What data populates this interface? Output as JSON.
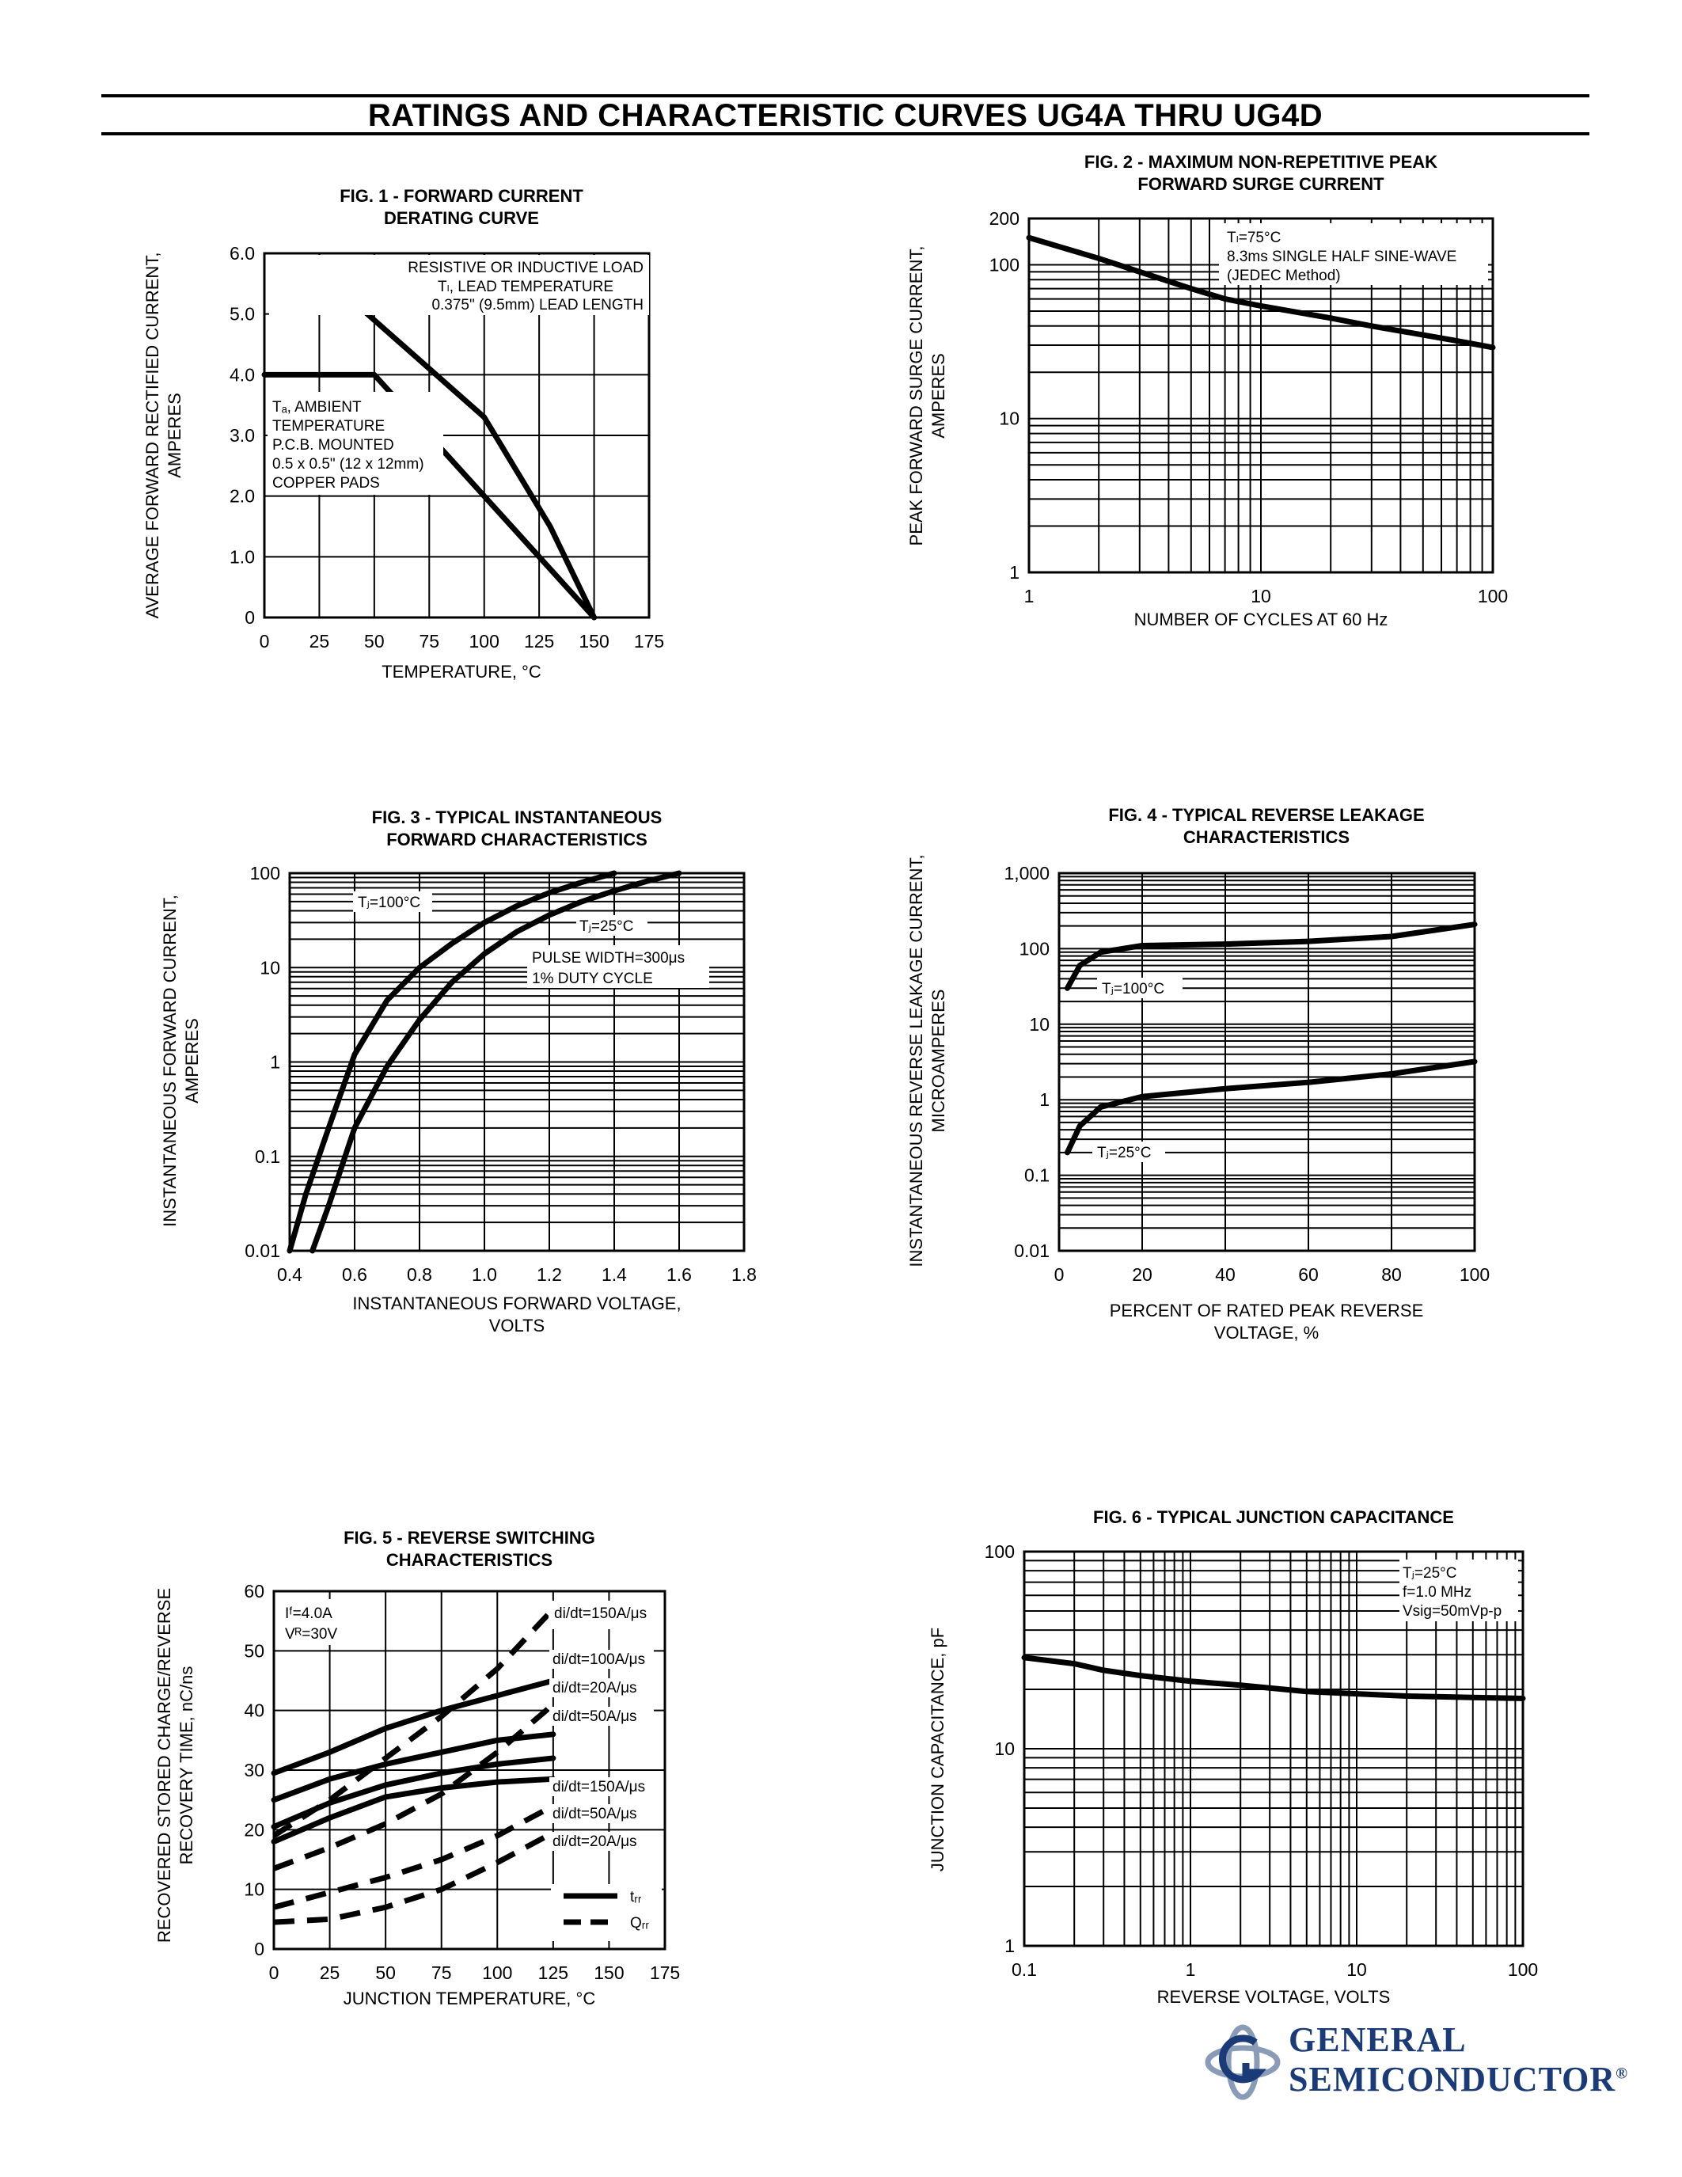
{
  "header": {
    "title": "RATINGS AND CHARACTERISTIC CURVES UG4A THRU UG4D"
  },
  "logo": {
    "line1": "GENERAL",
    "line2": "SEMICONDUCTOR",
    "reg": "®",
    "color": "#1a3a78"
  },
  "chart_data": [
    {
      "id": "fig1",
      "type": "line",
      "title": [
        "FIG. 1 - FORWARD CURRENT",
        "DERATING CURVE"
      ],
      "xlabel": [
        "TEMPERATURE, °C"
      ],
      "ylabel": [
        "AVERAGE FORWARD RECTIFIED CURRENT,",
        "AMPERES"
      ],
      "xlim": [
        0,
        175
      ],
      "ylim": [
        0,
        6.0
      ],
      "xticks": [
        0,
        25,
        50,
        75,
        100,
        125,
        150,
        175
      ],
      "xtick_labels": [
        "0",
        "25",
        "50",
        "75",
        "100",
        "125",
        "150",
        "175"
      ],
      "yticks": [
        0,
        1,
        2,
        3,
        4,
        5,
        6
      ],
      "ytick_labels": [
        "0",
        "1.0",
        "2.0",
        "3.0",
        "4.0",
        "5.0",
        "6.0"
      ],
      "grid": true,
      "series": [
        {
          "x": [
            25,
            50,
            75,
            100,
            115,
            130,
            150
          ],
          "y": [
            5.7,
            4.9,
            4.1,
            3.3,
            2.4,
            1.5,
            0
          ]
        },
        {
          "x": [
            0,
            50,
            150
          ],
          "y": [
            4.0,
            4.0,
            0
          ]
        }
      ],
      "annotations": [
        {
          "lines": [
            "RESISTIVE OR INDUCTIVE LOAD",
            "Tₗ, LEAD TEMPERATURE",
            "0.375\" (9.5mm) LEAD LENGTH"
          ]
        },
        {
          "lines": [
            "Tₐ, AMBIENT",
            "TEMPERATURE",
            "P.C.B. MOUNTED",
            "0.5 x 0.5\" (12 x 12mm)",
            "COPPER PADS"
          ]
        }
      ]
    },
    {
      "id": "fig2",
      "type": "line",
      "title": [
        "FIG. 2 - MAXIMUM NON-REPETITIVE PEAK",
        "FORWARD SURGE CURRENT"
      ],
      "xlabel": [
        "NUMBER OF CYCLES AT 60 Hᴢ"
      ],
      "ylabel": [
        "PEAK FORWARD SURGE CURRENT,",
        "AMPERES"
      ],
      "xscale": "log",
      "yscale": "log",
      "xlim": [
        1,
        100
      ],
      "ylim": [
        1,
        200
      ],
      "xticks": [
        1,
        10,
        100
      ],
      "xtick_labels": [
        "1",
        "10",
        "100"
      ],
      "yticks": [
        1,
        10,
        100,
        200
      ],
      "ytick_labels": [
        "1",
        "10",
        "100",
        "200"
      ],
      "grid": true,
      "series": [
        {
          "x": [
            1,
            2,
            3,
            5,
            7,
            10,
            20,
            30,
            50,
            70,
            100
          ],
          "y": [
            150,
            110,
            90,
            70,
            60,
            54,
            45,
            40,
            35,
            32,
            29
          ]
        }
      ],
      "annotations": [
        {
          "lines": [
            "Tₗ=75°C",
            "8.3ms SINGLE HALF SINE-WAVE",
            "(JEDEC Method)"
          ]
        }
      ]
    },
    {
      "id": "fig3",
      "type": "line",
      "title": [
        "FIG. 3 - TYPICAL INSTANTANEOUS",
        "FORWARD CHARACTERISTICS"
      ],
      "xlabel": [
        "INSTANTANEOUS FORWARD VOLTAGE,",
        "VOLTS"
      ],
      "ylabel": [
        "INSTANTANEOUS FORWARD CURRENT,",
        "AMPERES"
      ],
      "yscale": "log",
      "xlim": [
        0.4,
        1.8
      ],
      "ylim": [
        0.01,
        100
      ],
      "xticks": [
        0.4,
        0.6,
        0.8,
        1.0,
        1.2,
        1.4,
        1.6,
        1.8
      ],
      "xtick_labels": [
        "0.4",
        "0.6",
        "0.8",
        "1.0",
        "1.2",
        "1.4",
        "1.6",
        "1.8"
      ],
      "yticks": [
        0.01,
        0.1,
        1,
        10,
        100
      ],
      "ytick_labels": [
        "0.01",
        "0.1",
        "1",
        "10",
        "100"
      ],
      "grid": true,
      "series": [
        {
          "name": "Tⱼ=100°C",
          "x": [
            0.4,
            0.45,
            0.52,
            0.6,
            0.7,
            0.8,
            0.9,
            1.0,
            1.1,
            1.2,
            1.3,
            1.4
          ],
          "y": [
            0.01,
            0.04,
            0.2,
            1.2,
            4.5,
            10,
            18,
            30,
            45,
            62,
            80,
            100
          ]
        },
        {
          "name": "Tⱼ=25°C",
          "x": [
            0.47,
            0.52,
            0.6,
            0.7,
            0.8,
            0.9,
            1.0,
            1.1,
            1.2,
            1.3,
            1.4,
            1.5,
            1.6
          ],
          "y": [
            0.01,
            0.03,
            0.2,
            0.9,
            2.8,
            7,
            14,
            24,
            36,
            50,
            65,
            82,
            100
          ]
        }
      ],
      "annotations": [
        {
          "lines": [
            "PULSE WIDTH=300μs",
            "1% DUTY CYCLE"
          ]
        }
      ]
    },
    {
      "id": "fig4",
      "type": "line",
      "title": [
        "FIG. 4 - TYPICAL REVERSE LEAKAGE",
        "CHARACTERISTICS"
      ],
      "xlabel": [
        "PERCENT OF RATED PEAK REVERSE",
        "VOLTAGE, %"
      ],
      "ylabel": [
        "INSTANTANEOUS REVERSE LEAKAGE CURRENT,",
        "MICROAMPERES"
      ],
      "yscale": "log",
      "xlim": [
        0,
        100
      ],
      "ylim": [
        0.01,
        1000
      ],
      "xticks": [
        0,
        20,
        40,
        60,
        80,
        100
      ],
      "xtick_labels": [
        "0",
        "20",
        "40",
        "60",
        "80",
        "100"
      ],
      "yticks": [
        0.01,
        0.1,
        1,
        10,
        100,
        1000
      ],
      "ytick_labels": [
        "0.01",
        "0.1",
        "1",
        "10",
        "100",
        "1,000"
      ],
      "grid": true,
      "series": [
        {
          "name": "Tⱼ=100°C",
          "x": [
            2,
            5,
            10,
            20,
            40,
            60,
            80,
            100
          ],
          "y": [
            30,
            60,
            90,
            110,
            115,
            125,
            145,
            210
          ]
        },
        {
          "name": "Tⱼ=25°C",
          "x": [
            2,
            5,
            10,
            20,
            40,
            60,
            80,
            100
          ],
          "y": [
            0.2,
            0.45,
            0.8,
            1.1,
            1.4,
            1.7,
            2.2,
            3.2
          ]
        }
      ]
    },
    {
      "id": "fig5",
      "type": "line",
      "title": [
        "FIG. 5 - REVERSE SWITCHING",
        "CHARACTERISTICS"
      ],
      "xlabel": [
        "JUNCTION TEMPERATURE, °C"
      ],
      "ylabel": [
        "RECOVERED STORED CHARGE/REVERSE",
        "RECOVERY TIME, nC/ns"
      ],
      "xlim": [
        0,
        175
      ],
      "ylim": [
        0,
        60
      ],
      "xticks": [
        0,
        25,
        50,
        75,
        100,
        125,
        150,
        175
      ],
      "xtick_labels": [
        "0",
        "25",
        "50",
        "75",
        "100",
        "125",
        "150",
        "175"
      ],
      "yticks": [
        0,
        10,
        20,
        30,
        40,
        50,
        60
      ],
      "ytick_labels": [
        "0",
        "10",
        "20",
        "30",
        "40",
        "50",
        "60"
      ],
      "grid": true,
      "series": [
        {
          "name": "di/dt=100A/μs",
          "style": "solid",
          "x": [
            0,
            25,
            50,
            75,
            100,
            125
          ],
          "y": [
            29.5,
            33,
            37,
            40,
            42.5,
            45
          ]
        },
        {
          "name": "di/dt=50A/μs",
          "style": "solid",
          "x": [
            0,
            25,
            50,
            75,
            100,
            125
          ],
          "y": [
            25,
            28.5,
            31,
            33,
            35,
            36
          ]
        },
        {
          "name": "di/dt=20A/μs",
          "style": "solid",
          "x": [
            0,
            25,
            50,
            75,
            100,
            125
          ],
          "y": [
            20.5,
            24.5,
            27.5,
            29.5,
            31,
            32
          ]
        },
        {
          "name": "",
          "style": "solid",
          "x": [
            0,
            25,
            50,
            75,
            100,
            125
          ],
          "y": [
            18,
            22,
            25.5,
            27,
            28,
            28.5
          ]
        },
        {
          "name": "di/dt=150A/μs",
          "style": "dashed",
          "x": [
            0,
            25,
            50,
            75,
            100,
            125
          ],
          "y": [
            19,
            25,
            32,
            39,
            47,
            57
          ]
        },
        {
          "name": "di/dt=100A/μs",
          "style": "dashed",
          "x": [
            0,
            25,
            50,
            75,
            100,
            125
          ],
          "y": [
            13.5,
            17,
            21,
            26,
            33,
            41
          ]
        },
        {
          "name": "di/dt=50A/μs",
          "style": "dashed",
          "x": [
            0,
            25,
            50,
            75,
            100,
            125
          ],
          "y": [
            7,
            9.5,
            12,
            15,
            19,
            24
          ]
        },
        {
          "name": "di/dt=20A/μs",
          "style": "dashed",
          "x": [
            0,
            25,
            50,
            75,
            100,
            125
          ],
          "y": [
            4.5,
            5,
            7,
            10,
            14.5,
            19.5
          ]
        }
      ],
      "curve_labels": [
        "di/dt=150A/μs",
        "di/dt=100A/μs",
        "di/dt=20A/μs",
        "di/dt=50A/μs",
        "di/dt=150A/μs",
        "di/dt=50A/μs",
        "di/dt=20A/μs"
      ],
      "annotations": [
        {
          "lines": [
            "Iᶠ=4.0A",
            "Vᴿ=30V"
          ]
        }
      ],
      "legend": {
        "position": "bottom-right",
        "entries": [
          {
            "style": "solid",
            "label": "tᵣᵣ"
          },
          {
            "style": "dashed",
            "label": "Qᵣᵣ"
          }
        ]
      }
    },
    {
      "id": "fig6",
      "type": "line",
      "title": [
        "FIG. 6 - TYPICAL JUNCTION CAPACITANCE"
      ],
      "xlabel": [
        "REVERSE VOLTAGE, VOLTS"
      ],
      "ylabel": [
        "JUNCTION CAPACITANCE, pF"
      ],
      "xscale": "log",
      "yscale": "log",
      "xlim": [
        0.1,
        100
      ],
      "ylim": [
        1,
        100
      ],
      "xticks": [
        0.1,
        1,
        10,
        100
      ],
      "xtick_labels": [
        "0.1",
        "1",
        "10",
        "100"
      ],
      "yticks": [
        1,
        10,
        100
      ],
      "ytick_labels": [
        "1",
        "10",
        "100"
      ],
      "grid": true,
      "series": [
        {
          "x": [
            0.1,
            0.2,
            0.3,
            0.5,
            1,
            2,
            5,
            10,
            20,
            50,
            100
          ],
          "y": [
            29,
            27,
            25,
            23.5,
            22,
            21,
            19.5,
            19,
            18.5,
            18.2,
            18
          ]
        }
      ],
      "annotations": [
        {
          "lines": [
            "Tⱼ=25°C",
            "f=1.0 MHz",
            "Vsig=50mVp-p"
          ]
        }
      ]
    }
  ]
}
